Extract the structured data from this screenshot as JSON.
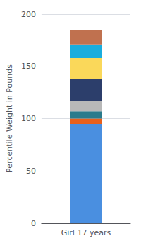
{
  "chart_data": {
    "type": "bar",
    "ylabel": "Percentile Weight in Pounds",
    "categories": [
      "Girl 17 years"
    ],
    "stacked": true,
    "series": [
      {
        "color": "#4A8FE0",
        "values": [
          95
        ]
      },
      {
        "color": "#E8601C",
        "values": [
          5
        ]
      },
      {
        "color": "#2A7B8C",
        "values": [
          7
        ]
      },
      {
        "color": "#B8B8B8",
        "values": [
          10
        ]
      },
      {
        "color": "#2C3E6B",
        "values": [
          21
        ]
      },
      {
        "color": "#FAD85A",
        "values": [
          20
        ]
      },
      {
        "color": "#1AADDD",
        "values": [
          13
        ]
      },
      {
        "color": "#C0714F",
        "values": [
          14
        ]
      }
    ],
    "ylim": [
      0,
      200
    ],
    "yticks": [
      0,
      50,
      100,
      150,
      200
    ],
    "grid": true
  }
}
